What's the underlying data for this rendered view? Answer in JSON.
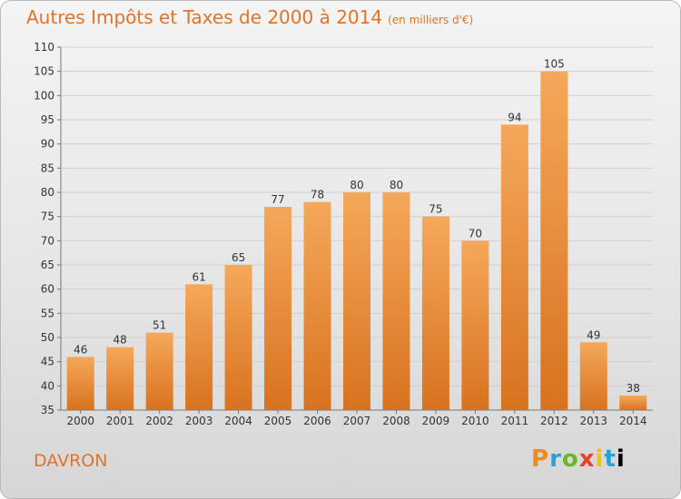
{
  "title": "Autres Impôts et Taxes de 2000 à 2014",
  "title_unit": "(en milliers d'€)",
  "location": "DAVRON",
  "logo_text": "Proxiti",
  "colors": {
    "title": "#e0742a",
    "bar_top": "#f5a85a",
    "bar_bottom": "#d8721f",
    "grid": "#d0d0d0"
  },
  "chart_data": {
    "type": "bar",
    "categories": [
      "2000",
      "2001",
      "2002",
      "2003",
      "2004",
      "2005",
      "2006",
      "2007",
      "2008",
      "2009",
      "2010",
      "2011",
      "2012",
      "2013",
      "2014"
    ],
    "values": [
      46,
      48,
      51,
      61,
      65,
      77,
      78,
      80,
      80,
      75,
      70,
      94,
      105,
      49,
      38
    ],
    "title": "Autres Impôts et Taxes de 2000 à 2014",
    "ylim": [
      35,
      110
    ],
    "yticks": [
      35,
      40,
      45,
      50,
      55,
      60,
      65,
      70,
      75,
      80,
      85,
      90,
      95,
      100,
      105,
      110
    ],
    "grid": true
  }
}
